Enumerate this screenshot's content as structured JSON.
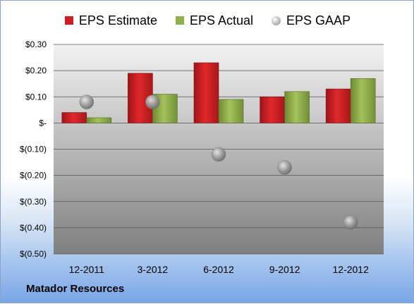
{
  "legend": {
    "estimate_label": "EPS Estimate",
    "actual_label": "EPS Actual",
    "gaap_label": "EPS GAAP"
  },
  "company": "Matador Resources",
  "colors": {
    "estimate": "#cc1f24",
    "actual": "#8fb04a",
    "gaap": "#a6a6a6"
  },
  "chart_data": {
    "type": "bar",
    "title": "",
    "xlabel": "",
    "ylabel": "",
    "categories": [
      "12-2011",
      "3-2012",
      "6-2012",
      "9-2012",
      "12-2012"
    ],
    "series": [
      {
        "name": "EPS Estimate",
        "values": [
          0.04,
          0.19,
          0.23,
          0.1,
          0.13
        ]
      },
      {
        "name": "EPS Actual",
        "values": [
          0.02,
          0.11,
          0.09,
          0.12,
          0.17
        ]
      },
      {
        "name": "EPS GAAP",
        "values": [
          0.08,
          0.08,
          -0.12,
          -0.17,
          -0.38
        ]
      }
    ],
    "ylim": [
      -0.5,
      0.3
    ],
    "yticks": [
      0.3,
      0.2,
      0.1,
      0,
      -0.1,
      -0.2,
      -0.3,
      -0.4,
      -0.5
    ],
    "ytick_labels": [
      "$0.30",
      "$0.20",
      "$0.10",
      "$-",
      "$(0.10)",
      "$(0.20)",
      "$(0.30)",
      "$(0.40)",
      "$(0.50)"
    ],
    "grid": true,
    "legend_position": "top"
  }
}
